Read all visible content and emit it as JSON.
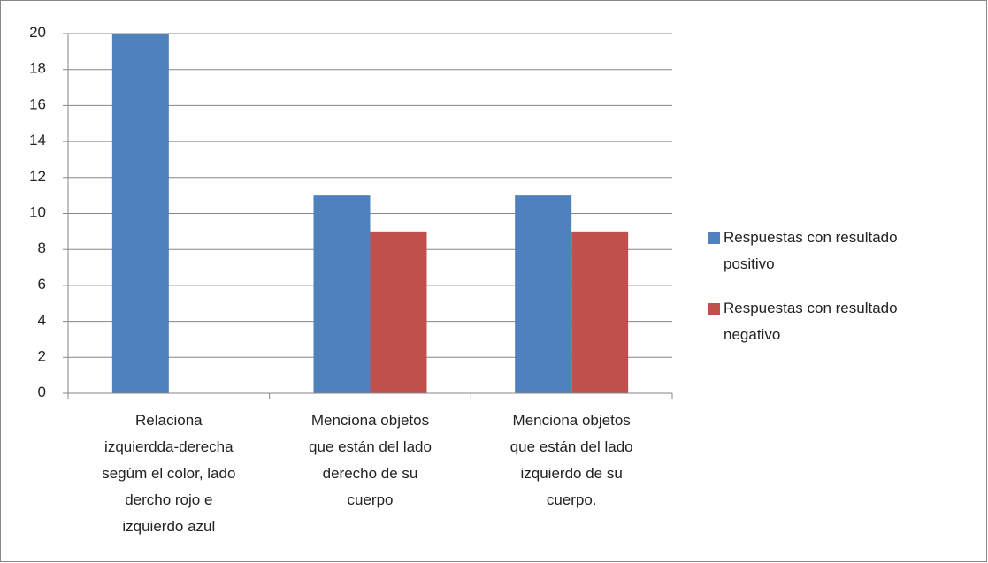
{
  "chart_data": {
    "type": "bar",
    "categories": [
      "Relaciona\nizquierdda-derecha\nsegúm el color, lado\ndercho rojo e\nizquierdo azul",
      "Menciona objetos\nque están del lado\nderecho de su\ncuerpo",
      "Menciona objetos\nque están del lado\nizquierdo de su\ncuerpo."
    ],
    "series": [
      {
        "name": "Respuestas con resultado\npositivo",
        "color": "#4f81bd",
        "values": [
          20,
          11,
          11
        ]
      },
      {
        "name": "Respuestas con resultado\nnegativo",
        "color": "#c0504d",
        "values": [
          0,
          9,
          9
        ]
      }
    ],
    "ylim": [
      0,
      20
    ],
    "yticks": [
      0,
      2,
      4,
      6,
      8,
      10,
      12,
      14,
      16,
      18,
      20
    ],
    "grid": true,
    "legend": "right"
  }
}
